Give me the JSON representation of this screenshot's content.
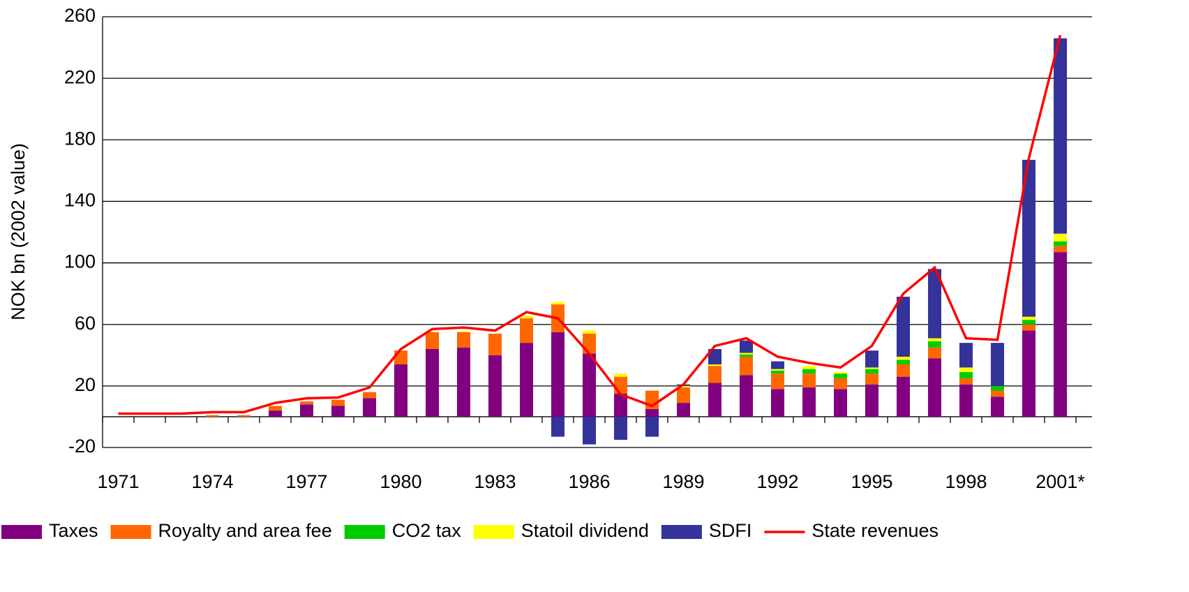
{
  "chart_data": {
    "type": "stacked-bar-line",
    "ylabel": "NOK bn (2002 value)",
    "categories": [
      "1971",
      null,
      null,
      "1974",
      null,
      null,
      "1977",
      null,
      null,
      "1980",
      null,
      null,
      "1983",
      null,
      null,
      "1986",
      null,
      null,
      "1989",
      null,
      null,
      "1992",
      null,
      null,
      "1995",
      null,
      null,
      "1998",
      null,
      null,
      "2001*"
    ],
    "ylim": [
      -20,
      260
    ],
    "yticks": [
      -20,
      20,
      60,
      100,
      140,
      180,
      220,
      260
    ],
    "grid": true,
    "series": [
      {
        "name": "Taxes",
        "color": "#800080",
        "values": [
          0,
          0,
          0,
          0,
          0,
          4,
          8,
          7,
          12,
          34,
          44,
          45,
          40,
          48,
          55,
          41,
          15,
          5,
          9,
          22,
          27,
          18,
          19,
          18,
          21,
          26,
          38,
          21,
          13,
          56,
          107
        ]
      },
      {
        "name": "Royalty and area fee",
        "color": "#ff6600",
        "values": [
          0,
          0,
          0,
          1,
          1,
          3,
          2,
          4,
          4,
          9,
          11,
          10,
          14,
          16,
          18,
          13,
          11,
          12,
          10,
          11,
          12,
          10,
          9,
          7,
          7,
          8,
          7,
          4,
          4,
          4,
          4
        ]
      },
      {
        "name": "CO2 tax",
        "color": "#00cc00",
        "values": [
          0,
          0,
          0,
          0,
          0,
          0,
          0,
          0,
          0,
          0,
          0,
          0,
          0,
          0,
          0,
          0,
          0,
          0,
          0,
          0,
          1.5,
          2,
          3,
          3,
          3,
          3,
          4,
          4,
          3,
          3,
          3
        ]
      },
      {
        "name": "Statoil dividend",
        "color": "#ffff00",
        "values": [
          0,
          0,
          0,
          0,
          0,
          0,
          0,
          0,
          0,
          0,
          0,
          0.5,
          0,
          1.5,
          1.5,
          2,
          2,
          0,
          1,
          1,
          1,
          1,
          2,
          1,
          1,
          2,
          2,
          3,
          0,
          2,
          5
        ]
      },
      {
        "name": "SDFI",
        "color": "#333399",
        "values": [
          0,
          0,
          0,
          0,
          0,
          0,
          0,
          0,
          0,
          0,
          0,
          0,
          0,
          0,
          -13,
          -18,
          -15,
          -13,
          1,
          10,
          8,
          5,
          0,
          0,
          11,
          39,
          45,
          16,
          28,
          102,
          127
        ]
      },
      {
        "name": "State revenues",
        "color": "#ff0000",
        "kind": "line",
        "values": [
          2,
          2,
          2,
          3,
          3,
          9,
          12,
          12.5,
          19,
          44,
          57,
          58,
          56,
          68,
          64,
          41,
          14.5,
          7,
          21,
          46,
          51,
          39,
          35,
          32,
          46,
          80,
          97,
          51,
          50,
          168,
          248
        ]
      }
    ]
  }
}
